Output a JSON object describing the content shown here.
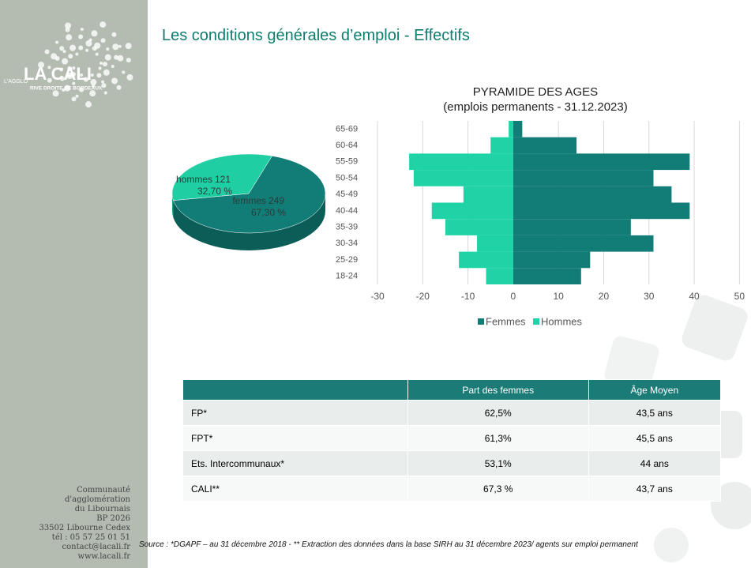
{
  "title": "Les conditions générales d’emploi - Effectifs",
  "logo": {
    "big": "LA CALI",
    "small": "L'AGGLO",
    "tagline": "RIVE DROITE DE BORDEAUX"
  },
  "contact": [
    "Communauté",
    "d'agglomération",
    "du Libournais",
    "BP 2026",
    "33502 Libourne Cedex",
    "tél : 05 57 25 01 51",
    "contact@lacali.fr",
    "www.lacali.fr"
  ],
  "chart_data": [
    {
      "type": "pie",
      "categories": [
        "femmes",
        "hommes"
      ],
      "values": [
        249,
        121
      ],
      "percentages": [
        67.3,
        32.7
      ],
      "percentage_labels": [
        "67,30 %",
        "32,70 %"
      ],
      "colors": [
        "#127d77",
        "#1fcfa3"
      ]
    },
    {
      "type": "pyramid",
      "title": "PYRAMIDE DES AGES",
      "subtitle": "(emplois permanents - 31.12.2023)",
      "categories": [
        "18-24",
        "25-29",
        "30-34",
        "35-39",
        "40-44",
        "45-49",
        "50-54",
        "55-59",
        "60-64",
        "65-69"
      ],
      "series": [
        {
          "name": "Femmes",
          "color": "#127d77",
          "values": [
            15,
            17,
            31,
            26,
            39,
            35,
            31,
            39,
            14,
            2
          ]
        },
        {
          "name": "Hommes",
          "color": "#1fd3a6",
          "values": [
            -6,
            -12,
            -8,
            -15,
            -18,
            -11,
            -22,
            -23,
            -5,
            -1
          ]
        }
      ],
      "xlim": [
        -30,
        55
      ],
      "xticks": [
        -30,
        -20,
        -10,
        0,
        10,
        20,
        30,
        40,
        50
      ],
      "grid": true,
      "legend": "bottom"
    }
  ],
  "table": {
    "header": [
      "",
      "Part des femmes",
      "Âge Moyen"
    ],
    "rows": [
      [
        "FP*",
        "62,5%",
        "43,5 ans"
      ],
      [
        "FPT*",
        "61,3%",
        "45,5 ans"
      ],
      [
        "Ets. Intercommunaux*",
        "53,1%",
        "44 ans"
      ],
      [
        "CALI**",
        "67,3 %",
        "43,7 ans"
      ]
    ]
  },
  "source": "Source : *DGAPF – au 31 décembre 2018 - ** Extraction des données dans la base SIRH au 31 décembre 2023/ agents sur emploi permanent"
}
